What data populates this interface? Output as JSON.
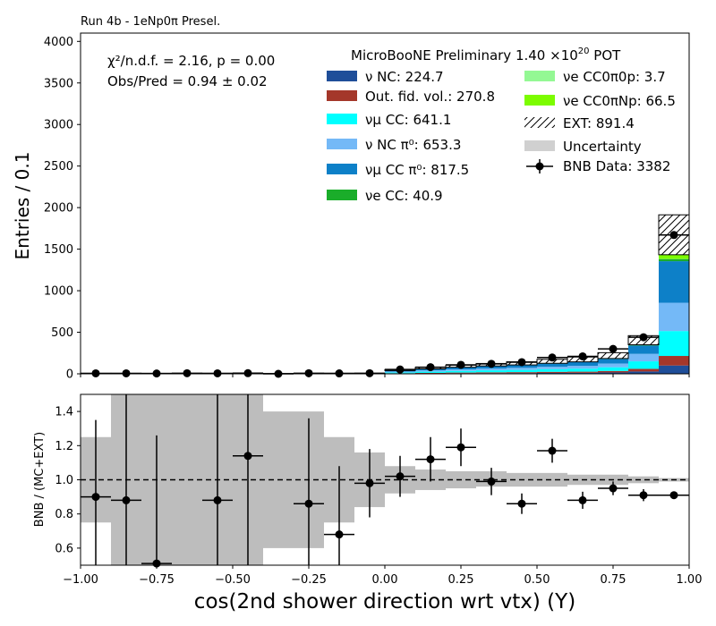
{
  "chart_data": [
    {
      "type": "bar",
      "stacked": true,
      "run_label": "Run 4b - 1eNp0π Presel.",
      "title": "MicroBooNE Preliminary 1.40 ×10",
      "title_sup": "20",
      "title_tail": " POT",
      "annotations": [
        "χ²/n.d.f. = 2.16, p = 0.00",
        "Obs/Pred = 0.94 ± 0.02"
      ],
      "xlabel": "cos(2nd shower direction wrt vtx) (Y)",
      "ylabel": "Entries / 0.1",
      "xlim": [
        -1.0,
        1.0
      ],
      "ylim": [
        0,
        4100
      ],
      "yticks": [
        0,
        500,
        1000,
        1500,
        2000,
        2500,
        3000,
        3500,
        4000
      ],
      "xticks": [
        "-1.00",
        "-0.75",
        "-0.50",
        "-0.25",
        "0.00",
        "0.25",
        "0.50",
        "0.75",
        "1.00"
      ],
      "legend_placement": "top-right",
      "bin_edges": [
        -1.0,
        -0.9,
        -0.8,
        -0.7,
        -0.6,
        -0.5,
        -0.4,
        -0.3,
        -0.2,
        -0.1,
        0.0,
        0.1,
        0.2,
        0.3,
        0.4,
        0.5,
        0.6,
        0.7,
        0.8,
        0.9,
        1.0
      ],
      "series": [
        {
          "name": "ν NC: 224.7",
          "color": "#1f4e99",
          "values": [
            0.5,
            0.5,
            0.5,
            0.5,
            0.5,
            0.5,
            0.3,
            0.5,
            0.5,
            0.3,
            3,
            5,
            7,
            8,
            9,
            11,
            12,
            16,
            28,
            100
          ]
        },
        {
          "name": "Out. fid. vol.: 270.8",
          "color": "#a4372a",
          "values": [
            0.5,
            0.5,
            0.5,
            0.5,
            0.5,
            0.5,
            0.3,
            0.5,
            0.5,
            0.3,
            4,
            6,
            8,
            10,
            11,
            13,
            14,
            18,
            32,
            115
          ]
        },
        {
          "name": "νμ CC: 641.1",
          "color": "#00ffff",
          "values": [
            1,
            1,
            1,
            1,
            1,
            1,
            1,
            1,
            1,
            1,
            10,
            15,
            20,
            24,
            27,
            32,
            36,
            45,
            90,
            300
          ]
        },
        {
          "name": "ν NC π⁰: 653.3",
          "color": "#74b9f7",
          "values": [
            1,
            1,
            1,
            1,
            1,
            1,
            1,
            1,
            1,
            1,
            9,
            14,
            18,
            22,
            25,
            29,
            34,
            45,
            90,
            340
          ]
        },
        {
          "name": "νμ CC π⁰: 817.5",
          "color": "#0d80c8",
          "values": [
            1,
            1,
            1,
            1,
            1,
            1,
            1,
            1,
            1,
            1,
            12,
            18,
            24,
            28,
            32,
            38,
            44,
            55,
            100,
            500
          ]
        },
        {
          "name": "νe CC: 40.9",
          "color": "#1aad2a",
          "values": [
            0,
            0,
            0,
            0,
            0,
            0,
            0,
            0,
            0,
            0,
            0.5,
            0.8,
            1,
            1.2,
            1.3,
            1.5,
            1.6,
            2,
            4,
            26
          ]
        },
        {
          "name": "νe CC0π0p: 3.7",
          "color": "#94f894",
          "values": [
            0,
            0,
            0,
            0,
            0,
            0,
            0,
            0,
            0,
            0,
            0,
            0.1,
            0.1,
            0.1,
            0.1,
            0.1,
            0.2,
            0.2,
            0.3,
            2
          ]
        },
        {
          "name": "νe CC0πNp: 66.5",
          "color": "#7cfc00",
          "values": [
            0,
            0,
            0,
            0,
            0,
            0,
            0,
            0,
            0,
            0,
            0.5,
            0.8,
            1,
            1.2,
            1.5,
            1.8,
            2,
            3,
            5,
            50
          ]
        },
        {
          "name": "EXT: 891.4",
          "color": "#ffffff",
          "hatch": true,
          "values": [
            2,
            2,
            2,
            2,
            2,
            2,
            1,
            2,
            2,
            2,
            12,
            18,
            25,
            30,
            38,
            48,
            58,
            70,
            110,
            480
          ]
        }
      ],
      "uncertainty_label": "Uncertainty",
      "uncertainty_color": "#d0d0d0",
      "data_series": {
        "name": "BNB Data: 3382",
        "x": [
          -0.95,
          -0.85,
          -0.75,
          -0.65,
          -0.55,
          -0.45,
          -0.35,
          -0.25,
          -0.15,
          -0.05,
          0.05,
          0.15,
          0.25,
          0.35,
          0.45,
          0.55,
          0.65,
          0.75,
          0.85,
          0.95
        ],
        "y": [
          6,
          6,
          4,
          7,
          6,
          8,
          0,
          7,
          5,
          7,
          52,
          80,
          108,
          120,
          140,
          196,
          210,
          300,
          440,
          1670
        ]
      }
    },
    {
      "type": "scatter",
      "ylabel": "BNB / (MC+EXT)",
      "xlim": [
        -1.0,
        1.0
      ],
      "ylim": [
        0.5,
        1.5
      ],
      "yticks": [
        "0.6",
        "0.8",
        "1.0",
        "1.2",
        "1.4"
      ],
      "reference_line": 1.0,
      "uncertainty_band": {
        "bin_edges": [
          -1.0,
          -0.9,
          -0.8,
          -0.7,
          -0.6,
          -0.5,
          -0.4,
          -0.3,
          -0.2,
          -0.1,
          0.0,
          0.1,
          0.2,
          0.3,
          0.4,
          0.5,
          0.6,
          0.7,
          0.8,
          0.9,
          1.0
        ],
        "low": [
          0.75,
          0.5,
          0.5,
          0.5,
          0.5,
          0.5,
          0.6,
          0.6,
          0.75,
          0.84,
          0.92,
          0.94,
          0.95,
          0.96,
          0.96,
          0.96,
          0.97,
          0.97,
          0.98,
          0.99
        ],
        "high": [
          1.25,
          1.5,
          1.5,
          1.5,
          1.5,
          1.5,
          1.4,
          1.4,
          1.25,
          1.16,
          1.08,
          1.06,
          1.05,
          1.05,
          1.04,
          1.04,
          1.03,
          1.03,
          1.02,
          1.01
        ]
      },
      "points": {
        "x": [
          -0.95,
          -0.85,
          -0.75,
          -0.55,
          -0.45,
          -0.25,
          -0.15,
          -0.05,
          0.05,
          0.15,
          0.25,
          0.35,
          0.45,
          0.55,
          0.65,
          0.75,
          0.85,
          0.95
        ],
        "y": [
          0.9,
          0.88,
          0.51,
          0.88,
          1.14,
          0.86,
          0.68,
          0.98,
          1.02,
          1.12,
          1.19,
          0.99,
          0.86,
          1.17,
          0.88,
          0.95,
          0.91,
          0.91
        ],
        "err": [
          0.45,
          0.62,
          0.75,
          0.75,
          0.8,
          0.5,
          0.4,
          0.2,
          0.12,
          0.13,
          0.11,
          0.08,
          0.06,
          0.07,
          0.05,
          0.04,
          0.035,
          0.02
        ]
      }
    }
  ]
}
